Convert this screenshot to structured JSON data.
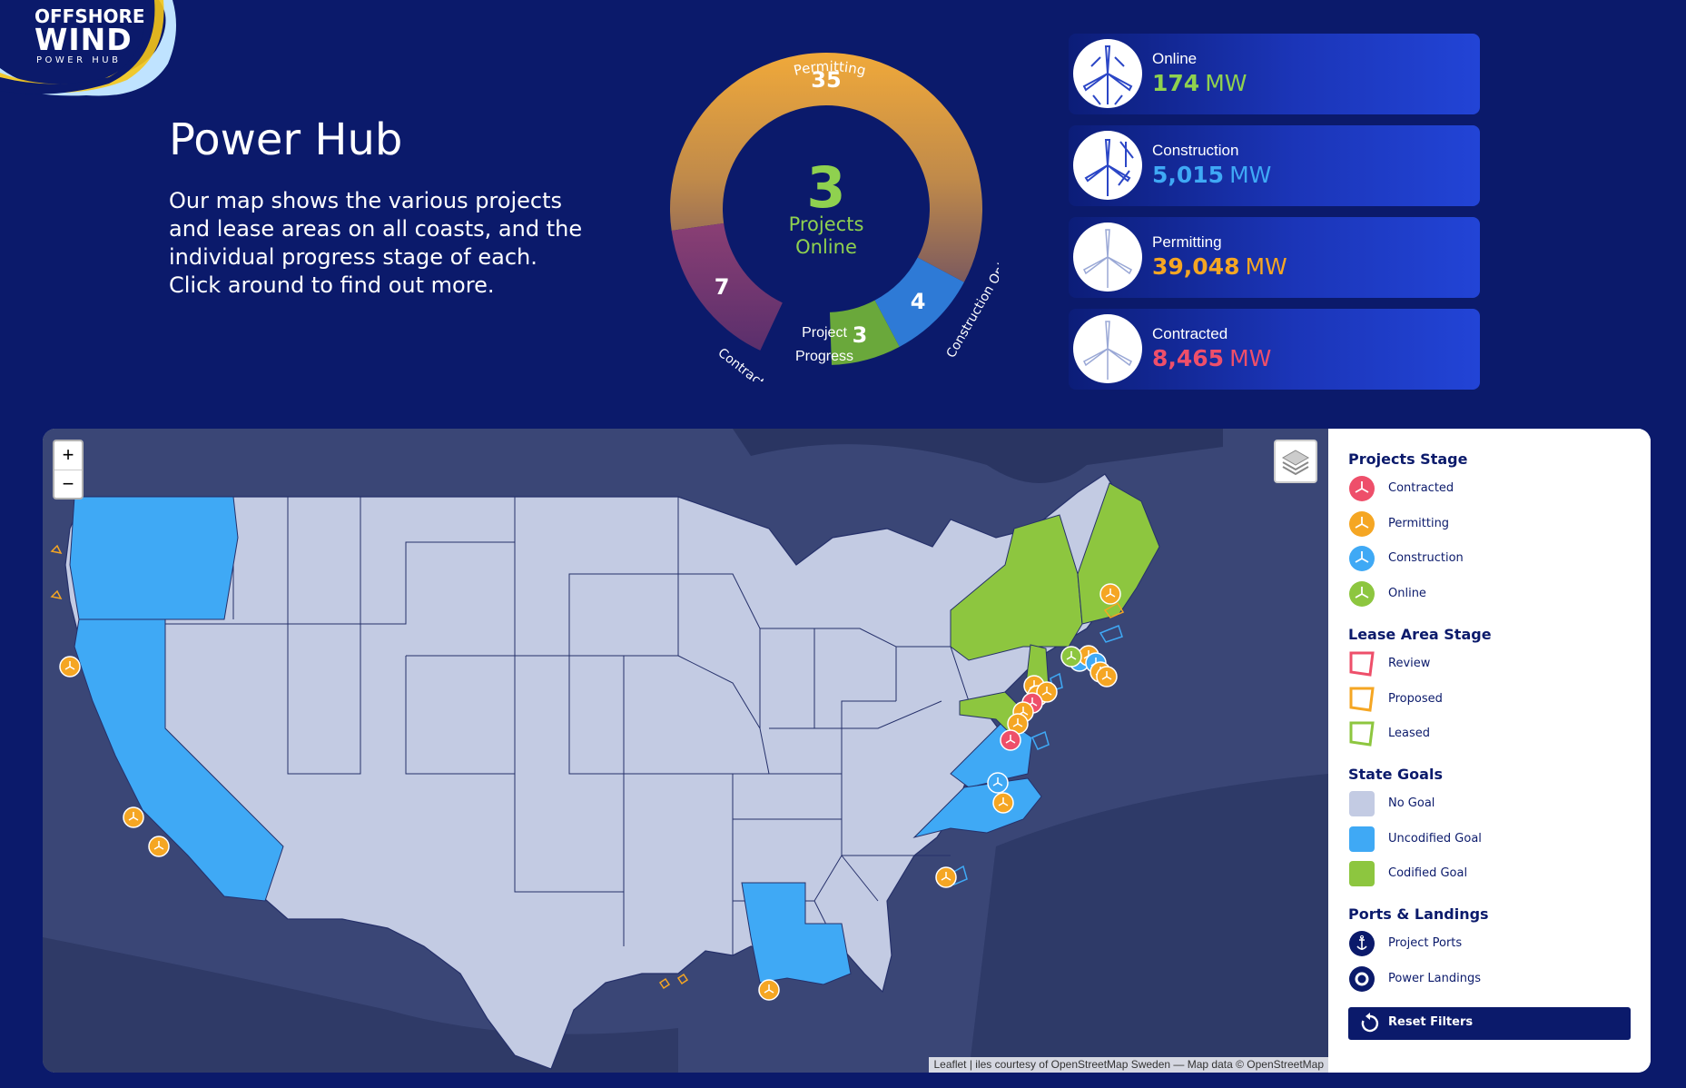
{
  "logo": {
    "line1": "OFFSHORE",
    "line2": "WIND",
    "line3": "POWER HUB"
  },
  "hero": {
    "title": "Power Hub",
    "text": "Our map shows the various projects and lease areas on all coasts, and the individual progress stage of each. Click around to find out more."
  },
  "progress": {
    "center_value": "3",
    "center_label_1": "Projects",
    "center_label_2": "Online",
    "caption_1": "Project",
    "caption_2": "Progress",
    "segments": [
      {
        "name": "Permitting",
        "value": 35,
        "color": "#f0a93a"
      },
      {
        "name": "Construction",
        "value": 4,
        "color": "#2e7ad6"
      },
      {
        "name": "Online",
        "value": 3,
        "color": "#6aa83b"
      },
      {
        "name": "Contracted",
        "value": 7,
        "color": "#7a3a7a"
      }
    ]
  },
  "stats": [
    {
      "label": "Online",
      "value": "174",
      "unit": "MW",
      "color": "#8fd14f"
    },
    {
      "label": "Construction",
      "value": "5,015",
      "unit": "MW",
      "color": "#3fa9f5"
    },
    {
      "label": "Permitting",
      "value": "39,048",
      "unit": "MW",
      "color": "#f5a623"
    },
    {
      "label": "Contracted",
      "value": "8,465",
      "unit": "MW",
      "color": "#ee4f6a"
    }
  ],
  "map": {
    "zoom_in": "+",
    "zoom_out": "−",
    "attribution": "Leaflet | iles courtesy of OpenStreetMap Sweden — Map data © OpenStreetMap",
    "colors": {
      "no_goal": "#c3cbe3",
      "uncodified": "#3fa9f5",
      "codified": "#8dc63f",
      "water": "#33406e"
    }
  },
  "legend": {
    "projects_head": "Projects Stage",
    "projects": [
      {
        "label": "Contracted",
        "color": "#ee4f6a"
      },
      {
        "label": "Permitting",
        "color": "#f5a623"
      },
      {
        "label": "Construction",
        "color": "#3fa9f5"
      },
      {
        "label": "Online",
        "color": "#8dc63f"
      }
    ],
    "lease_head": "Lease Area Stage",
    "lease": [
      {
        "label": "Review",
        "color": "#ee4f6a"
      },
      {
        "label": "Proposed",
        "color": "#f5a623"
      },
      {
        "label": "Leased",
        "color": "#8dc63f"
      }
    ],
    "goals_head": "State Goals",
    "goals": [
      {
        "label": "No Goal",
        "color": "#c3cbe3"
      },
      {
        "label": "Uncodified Goal",
        "color": "#3fa9f5"
      },
      {
        "label": "Codified Goal",
        "color": "#8dc63f"
      }
    ],
    "ports_head": "Ports & Landings",
    "ports": [
      {
        "label": "Project Ports",
        "icon": "anchor-icon"
      },
      {
        "label": "Power Landings",
        "icon": "target-icon"
      }
    ],
    "reset_label": "Reset Filters"
  }
}
